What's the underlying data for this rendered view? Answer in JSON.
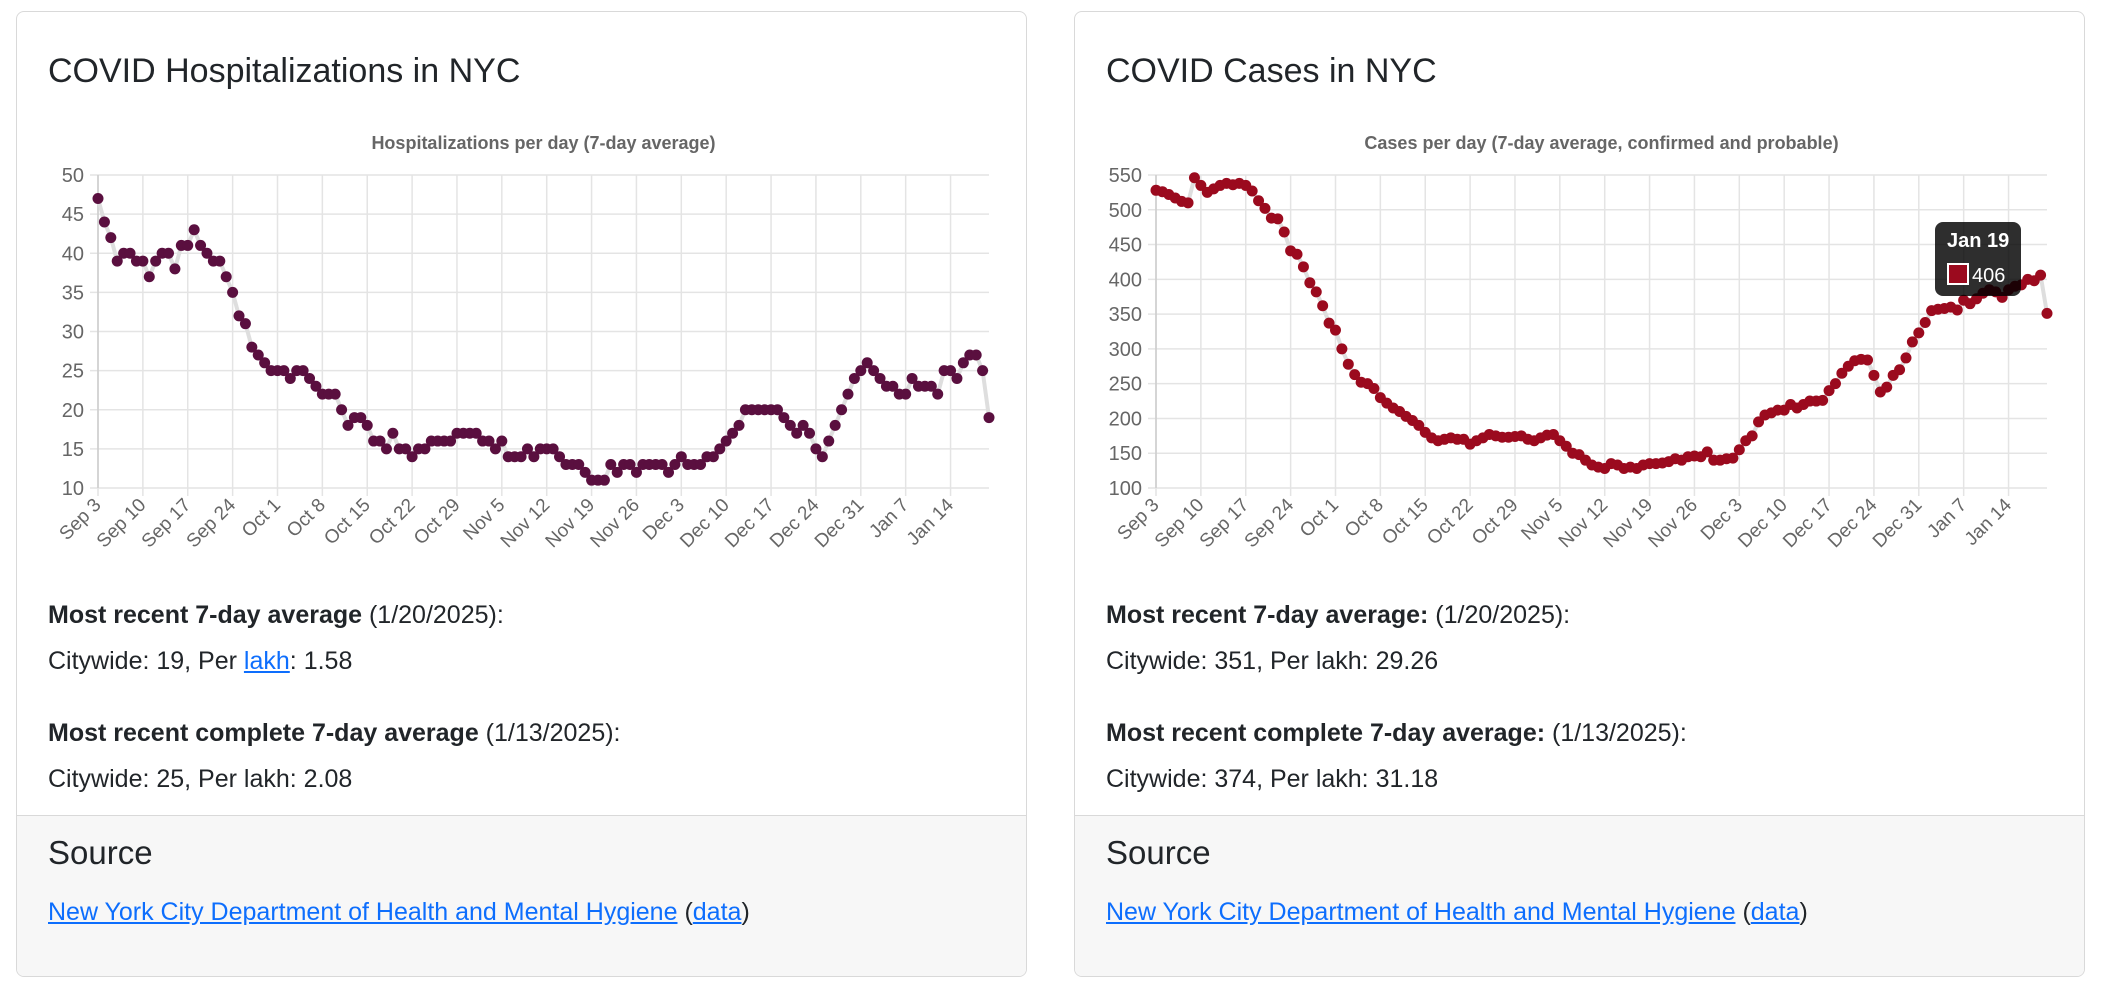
{
  "cards": [
    {
      "title": "COVID Hospitalizations in NYC",
      "chart_data": {
        "type": "line",
        "title": "Hospitalizations per day (7-day average)",
        "xlabel": "",
        "ylabel": "",
        "x_range": [
          "Sep 3",
          "Jan 20"
        ],
        "x_tick_labels": [
          "Sep 3",
          "Sep 10",
          "Sep 17",
          "Sep 24",
          "Oct 1",
          "Oct 8",
          "Oct 15",
          "Oct 22",
          "Oct 29",
          "Nov 5",
          "Nov 12",
          "Nov 19",
          "Nov 26",
          "Dec 3",
          "Dec 10",
          "Dec 17",
          "Dec 24",
          "Dec 31",
          "Jan 7",
          "Jan 14"
        ],
        "ylim": [
          10,
          50
        ],
        "y_ticks": [
          10,
          15,
          20,
          25,
          30,
          35,
          40,
          45,
          50
        ],
        "grid": true,
        "color": "#5a0f3f",
        "values": [
          47,
          44,
          42,
          39,
          40,
          40,
          39,
          39,
          37,
          39,
          40,
          40,
          38,
          41,
          41,
          43,
          41,
          40,
          39,
          39,
          37,
          35,
          32,
          31,
          28,
          27,
          26,
          25,
          25,
          25,
          24,
          25,
          25,
          24,
          23,
          22,
          22,
          22,
          20,
          18,
          19,
          19,
          18,
          16,
          16,
          15,
          17,
          15,
          15,
          14,
          15,
          15,
          16,
          16,
          16,
          16,
          17,
          17,
          17,
          17,
          16,
          16,
          15,
          16,
          14,
          14,
          14,
          15,
          14,
          15,
          15,
          15,
          14,
          13,
          13,
          13,
          12,
          11,
          11,
          11,
          13,
          12,
          13,
          13,
          12,
          13,
          13,
          13,
          13,
          12,
          13,
          14,
          13,
          13,
          13,
          14,
          14,
          15,
          16,
          17,
          18,
          20,
          20,
          20,
          20,
          20,
          20,
          19,
          18,
          17,
          18,
          17,
          15,
          14,
          16,
          18,
          20,
          22,
          24,
          25,
          26,
          25,
          24,
          23,
          23,
          22,
          22,
          24,
          23,
          23,
          23,
          22,
          25,
          25,
          24,
          26,
          27,
          27,
          25,
          19
        ]
      },
      "stats": {
        "recent_label": "Most recent 7-day average",
        "recent_date": " (1/20/2025):",
        "recent_citywide": "Citywide: 19, Per ",
        "recent_link": "lakh",
        "recent_per": ": 1.58",
        "complete_label": "Most recent complete 7-day average",
        "complete_date": " (1/13/2025):",
        "complete_line": "Citywide: 25, Per lakh: 2.08"
      },
      "source": {
        "heading": "Source",
        "link": "New York City Department of Health and Mental Hygiene",
        "open": " (",
        "data_link": "data",
        "close": ")"
      }
    },
    {
      "title": "COVID Cases in NYC",
      "chart_data": {
        "type": "line",
        "title": "Cases per day (7-day average, confirmed and probable)",
        "xlabel": "",
        "ylabel": "",
        "x_range": [
          "Sep 3",
          "Jan 20"
        ],
        "x_tick_labels": [
          "Sep 3",
          "Sep 10",
          "Sep 17",
          "Sep 24",
          "Oct 1",
          "Oct 8",
          "Oct 15",
          "Oct 22",
          "Oct 29",
          "Nov 5",
          "Nov 12",
          "Nov 19",
          "Nov 26",
          "Dec 3",
          "Dec 10",
          "Dec 17",
          "Dec 24",
          "Dec 31",
          "Jan 7",
          "Jan 14"
        ],
        "ylim": [
          100,
          550
        ],
        "y_ticks": [
          100,
          150,
          200,
          250,
          300,
          350,
          400,
          450,
          500,
          550
        ],
        "grid": true,
        "color": "#9b0a1e",
        "values": [
          528,
          526,
          522,
          517,
          512,
          510,
          546,
          535,
          525,
          530,
          535,
          538,
          536,
          538,
          535,
          527,
          513,
          502,
          488,
          487,
          468,
          441,
          436,
          418,
          395,
          382,
          362,
          337,
          327,
          300,
          278,
          263,
          252,
          250,
          243,
          230,
          222,
          215,
          210,
          203,
          197,
          190,
          180,
          172,
          168,
          170,
          172,
          170,
          170,
          163,
          168,
          172,
          177,
          175,
          173,
          173,
          174,
          175,
          170,
          168,
          172,
          176,
          177,
          168,
          160,
          150,
          148,
          140,
          133,
          130,
          128,
          135,
          133,
          128,
          130,
          128,
          133,
          135,
          135,
          136,
          138,
          142,
          140,
          145,
          146,
          145,
          152,
          140,
          140,
          142,
          143,
          155,
          168,
          175,
          195,
          205,
          208,
          212,
          212,
          220,
          215,
          220,
          225,
          225,
          226,
          240,
          250,
          265,
          275,
          283,
          285,
          284,
          262,
          238,
          245,
          262,
          270,
          287,
          310,
          323,
          338,
          355,
          357,
          358,
          360,
          356,
          370,
          365,
          372,
          380,
          385,
          382,
          374,
          385,
          390,
          392,
          400,
          398,
          406,
          351
        ],
        "tooltip": {
          "title": "Jan 19",
          "value": "406"
        }
      },
      "stats": {
        "recent_label": "Most recent 7-day average:",
        "recent_date": " (1/20/2025):",
        "recent_line": "Citywide: 351, Per lakh: 29.26",
        "complete_label": "Most recent complete 7-day average:",
        "complete_date": " (1/13/2025):",
        "complete_line": "Citywide: 374, Per lakh: 31.18"
      },
      "source": {
        "heading": "Source",
        "link": "New York City Department of Health and Mental Hygiene",
        "open": " (",
        "data_link": "data",
        "close": ")"
      }
    }
  ]
}
